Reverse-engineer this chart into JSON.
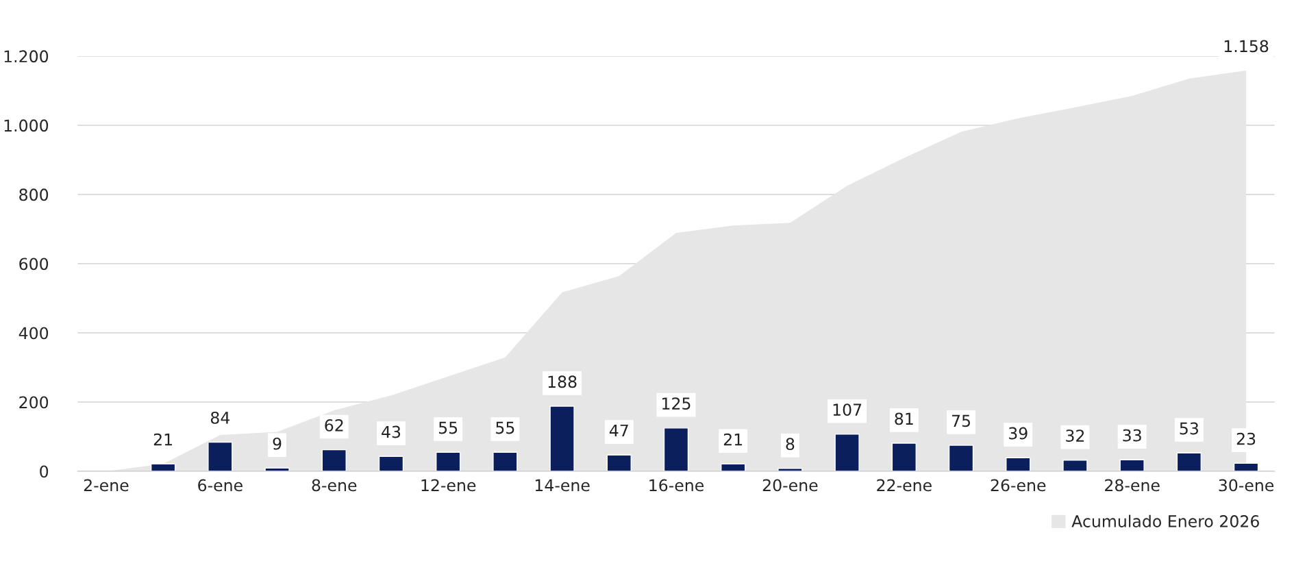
{
  "chart_data": {
    "type": "bar",
    "categories": [
      "2-ene",
      null,
      "6-ene",
      null,
      "8-ene",
      null,
      "12-ene",
      null,
      "14-ene",
      null,
      "16-ene",
      null,
      "20-ene",
      null,
      "22-ene",
      null,
      "26-ene",
      null,
      "28-ene",
      null,
      "30-ene"
    ],
    "series": [
      {
        "name": "Acumulado Enero 2026",
        "type": "area",
        "color": "#e6e6e6",
        "values": [
          0,
          21,
          105,
          114,
          176,
          219,
          274,
          329,
          517,
          564,
          689,
          710,
          718,
          825,
          906,
          981,
          1020,
          1052,
          1085,
          1135,
          1158
        ],
        "value_labels": [
          null,
          null,
          null,
          null,
          null,
          null,
          null,
          null,
          null,
          null,
          null,
          null,
          null,
          null,
          null,
          null,
          null,
          null,
          null,
          null,
          "1.158"
        ]
      },
      {
        "color": "#0a1f5c",
        "values": [
          null,
          21,
          84,
          9,
          62,
          43,
          55,
          55,
          188,
          47,
          125,
          21,
          8,
          107,
          81,
          75,
          39,
          32,
          33,
          53,
          23
        ],
        "value_labels": [
          null,
          "21",
          "84",
          "9",
          "62",
          "43",
          "55",
          "55",
          "188",
          "47",
          "125",
          "21",
          "8",
          "107",
          "81",
          "75",
          "39",
          "32",
          "33",
          "53",
          "23"
        ]
      }
    ],
    "ylim": [
      0,
      1200
    ],
    "yticks": [
      0,
      200,
      400,
      600,
      800,
      {
        "value": 1000,
        "label": "1.000"
      },
      {
        "value": 1200,
        "label": "1.200"
      }
    ],
    "grid": "y",
    "legend": "bottom right"
  }
}
